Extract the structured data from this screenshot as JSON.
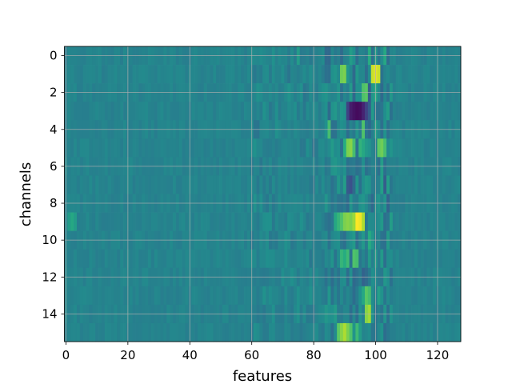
{
  "chart_data": {
    "type": "heatmap",
    "title": "",
    "xlabel": "features",
    "ylabel": "channels",
    "colormap": "viridis",
    "xlim": [
      -0.5,
      127.5
    ],
    "ylim": [
      15.5,
      -0.5
    ],
    "xticks": [
      0,
      20,
      40,
      60,
      80,
      100,
      120
    ],
    "yticks": [
      0,
      2,
      4,
      6,
      8,
      10,
      12,
      14
    ],
    "grid": true,
    "grid_color": "#b0b0b0",
    "n_channels": 16,
    "n_features": 128,
    "value_range": [
      0,
      1
    ],
    "background_level": 0.45,
    "notable_cells": [
      {
        "channel": 0,
        "features": [
          75,
          92,
          98,
          103
        ],
        "values": [
          0.55,
          0.55,
          0.62,
          0.6
        ]
      },
      {
        "channel": 1,
        "features": [
          89,
          90,
          99,
          100,
          101
        ],
        "values": [
          0.78,
          0.8,
          0.92,
          0.96,
          0.92
        ]
      },
      {
        "channel": 2,
        "features": [
          96,
          97,
          98,
          100
        ],
        "values": [
          0.72,
          0.74,
          0.3,
          0.6
        ]
      },
      {
        "channel": 3,
        "features": [
          91,
          92,
          93,
          94,
          95,
          96,
          97,
          98
        ],
        "values": [
          0.2,
          0.08,
          0.05,
          0.03,
          0.04,
          0.1,
          0.2,
          0.3
        ]
      },
      {
        "channel": 4,
        "features": [
          85,
          96
        ],
        "values": [
          0.7,
          0.72
        ]
      },
      {
        "channel": 5,
        "features": [
          90,
          91,
          92,
          93,
          95,
          96,
          101,
          102,
          103
        ],
        "values": [
          0.62,
          0.8,
          0.82,
          0.7,
          0.65,
          0.6,
          0.75,
          0.78,
          0.7
        ]
      },
      {
        "channel": 7,
        "features": [
          91,
          92,
          103
        ],
        "values": [
          0.28,
          0.25,
          0.3
        ]
      },
      {
        "channel": 8,
        "features": [
          104
        ],
        "values": [
          0.32
        ]
      },
      {
        "channel": 9,
        "features": [
          1,
          2,
          3,
          87,
          88,
          89,
          90,
          91,
          92,
          93,
          94,
          95,
          96,
          97
        ],
        "values": [
          0.55,
          0.6,
          0.55,
          0.6,
          0.66,
          0.72,
          0.8,
          0.82,
          0.8,
          0.85,
          1.0,
          0.98,
          0.88,
          0.4
        ]
      },
      {
        "channel": 10,
        "features": [
          89,
          98
        ],
        "values": [
          0.4,
          0.62
        ]
      },
      {
        "channel": 11,
        "features": [
          89,
          90,
          91,
          93,
          94
        ],
        "values": [
          0.66,
          0.62,
          0.68,
          0.72,
          0.7
        ]
      },
      {
        "channel": 12,
        "features": [
          96,
          97
        ],
        "values": [
          0.32,
          0.35
        ]
      },
      {
        "channel": 13,
        "features": [
          96,
          97,
          98
        ],
        "values": [
          0.6,
          0.74,
          0.7
        ]
      },
      {
        "channel": 14,
        "features": [
          97,
          98
        ],
        "values": [
          0.82,
          0.86
        ]
      },
      {
        "channel": 15,
        "features": [
          88,
          89,
          90,
          91,
          92,
          94
        ],
        "values": [
          0.75,
          0.82,
          0.88,
          0.8,
          0.72,
          0.68
        ]
      }
    ]
  }
}
